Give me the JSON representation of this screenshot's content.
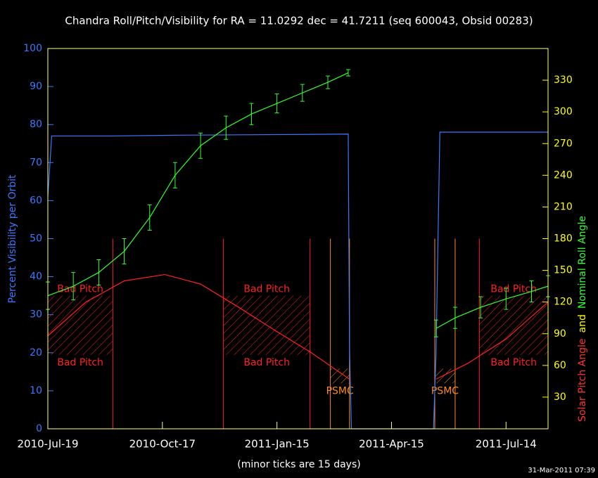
{
  "chart_data": {
    "type": "line",
    "title": "Chandra Roll/Pitch/Visibility for RA = 11.0292 dec = 41.7211 (seq 600043, Obsid 00283)",
    "ylabel": "Percent Visibility per Orbit",
    "y2label_parts": [
      {
        "text": "Solar Pitch Angle",
        "color": "#ff3030"
      },
      {
        "text": "and",
        "color": "#ffff00"
      },
      {
        "text": "Nominal Roll Angle",
        "color": "#30ff30"
      }
    ],
    "footnote": "(minor ticks are 15 days)",
    "timestamp": "31-Mar-2011 07:39",
    "xlim": [
      0,
      393
    ],
    "xticks": [
      {
        "value": 0,
        "label": "2010-Jul-19"
      },
      {
        "value": 90,
        "label": "2010-Oct-17"
      },
      {
        "value": 180,
        "label": "2011-Jan-15"
      },
      {
        "value": 270,
        "label": "2011-Apr-15"
      },
      {
        "value": 360,
        "label": "2011-Jul-14"
      }
    ],
    "ylim": [
      0,
      100
    ],
    "yticks": [
      0,
      10,
      20,
      30,
      40,
      50,
      60,
      70,
      80,
      90,
      100
    ],
    "y2lim": [
      0,
      360
    ],
    "y2ticks": [
      30,
      60,
      90,
      120,
      150,
      180,
      210,
      240,
      270,
      300,
      330
    ],
    "series": [
      {
        "name": "Visibility",
        "color": "#3a78ff",
        "axis": "y",
        "x": [
          0,
          3,
          50,
          100,
          150,
          200,
          236,
          237,
          238.5,
          250,
          280,
          303,
          305,
          308,
          350,
          393
        ],
        "values": [
          61,
          77,
          77,
          77.2,
          77.3,
          77.4,
          77.5,
          22,
          0,
          0,
          0,
          0,
          20,
          78,
          78,
          78
        ]
      },
      {
        "name": "Nominal Roll Angle",
        "color": "#30ff30",
        "axis": "y2",
        "x": [
          0,
          20,
          40,
          60,
          80,
          100,
          120,
          140,
          160,
          180,
          200,
          220,
          236,
          270,
          305,
          320,
          340,
          360,
          380,
          393
        ],
        "values": [
          126,
          135,
          148,
          168,
          200,
          240,
          268,
          285,
          298,
          308,
          318,
          328,
          337,
          null,
          95,
          105,
          115,
          123,
          130,
          135
        ],
        "errors": [
          13,
          13,
          12,
          12,
          12,
          12,
          12,
          11,
          10,
          9,
          8,
          6,
          3,
          null,
          8,
          10,
          10,
          10,
          10,
          10
        ]
      },
      {
        "name": "Solar Pitch Angle",
        "color": "#ff2020",
        "axis": "y2",
        "x": [
          0,
          30,
          60,
          92,
          120,
          150,
          180,
          207,
          237,
          270,
          305,
          330,
          360,
          393
        ],
        "values": [
          88,
          120,
          140,
          146,
          137,
          115,
          92,
          72,
          47,
          null,
          47,
          62,
          85,
          120
        ]
      }
    ],
    "regions": [
      {
        "label": "Bad Pitch",
        "color": "#ff2020",
        "start": 0,
        "end": 51,
        "low": 70,
        "high": 126
      },
      {
        "label": "Bad Pitch",
        "color": "#ff2020",
        "start": 138,
        "end": 206,
        "low": 70,
        "high": 126
      },
      {
        "label": "Bad Pitch",
        "color": "#ff2020",
        "start": 339,
        "end": 393,
        "low": 70,
        "high": 126
      },
      {
        "label": "PSMC",
        "color": "#ff8c1a",
        "start": 222,
        "end": 237,
        "low": 43,
        "high": 57
      },
      {
        "label": "PSMC",
        "color": "#ff8c1a",
        "start": 304,
        "end": 320,
        "low": 43,
        "high": 57
      }
    ]
  }
}
